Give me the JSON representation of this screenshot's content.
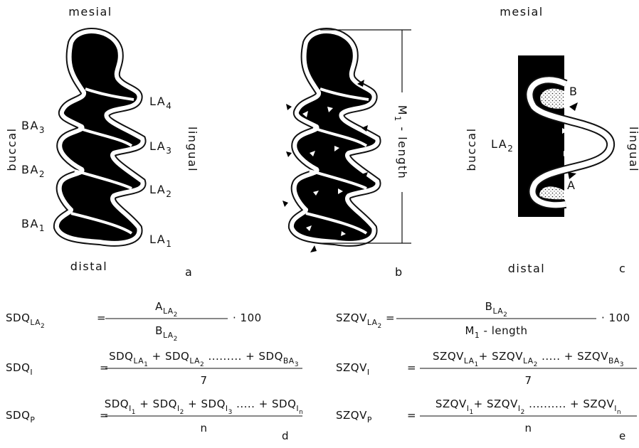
{
  "panel_a": {
    "top": "mesial",
    "bottom": "distal",
    "left": "buccal",
    "right": "lingual",
    "letter": "a",
    "labels": [
      {
        "base": "LA",
        "sub": "4"
      },
      {
        "base": "BA",
        "sub": "3"
      },
      {
        "base": "LA",
        "sub": "3"
      },
      {
        "base": "BA",
        "sub": "2"
      },
      {
        "base": "LA",
        "sub": "2"
      },
      {
        "base": "BA",
        "sub": "1"
      },
      {
        "base": "LA",
        "sub": "1"
      }
    ]
  },
  "panel_b": {
    "length": [
      {
        "t": "M"
      },
      {
        "s": "1"
      },
      {
        "t": " - length"
      }
    ],
    "letter": "b"
  },
  "panel_c": {
    "top": "mesial",
    "bottom": "distal",
    "left": "buccal",
    "right": "lingual",
    "letter": "c",
    "labels": [
      {
        "base": "LA",
        "sub": "2"
      },
      {
        "base": "B"
      },
      {
        "base": "A"
      }
    ]
  },
  "panel_d": {
    "letter": "d",
    "formulas": [
      {
        "lhs": [
          {
            "t": "SDQ"
          },
          {
            "s": "LA"
          },
          {
            "ss": "2"
          }
        ],
        "eq": "=",
        "num": [
          {
            "t": "A"
          },
          {
            "s": "LA"
          },
          {
            "ss": "2"
          }
        ],
        "den": [
          {
            "t": "B"
          },
          {
            "s": "LA"
          },
          {
            "ss": "2"
          }
        ],
        "factor": "· 100"
      },
      {
        "lhs": [
          {
            "t": "SDQ"
          },
          {
            "s": "I"
          }
        ],
        "eq": "=",
        "num": [
          {
            "t": "SDQ"
          },
          {
            "s": "LA"
          },
          {
            "ss": "1"
          },
          {
            "t": " + SDQ"
          },
          {
            "s": "LA"
          },
          {
            "ss": "2"
          },
          {
            "t": " ......... + SDQ"
          },
          {
            "s": "BA"
          },
          {
            "ss": "3"
          }
        ],
        "den": [
          {
            "t": "7"
          }
        ]
      },
      {
        "lhs": [
          {
            "t": "SDQ"
          },
          {
            "s": "P"
          }
        ],
        "eq": "=",
        "num": [
          {
            "t": "SDQ"
          },
          {
            "s": "I"
          },
          {
            "ss": "1"
          },
          {
            "t": " + SDQ"
          },
          {
            "s": "I"
          },
          {
            "ss": "2"
          },
          {
            "t": " + SDQ"
          },
          {
            "s": "I"
          },
          {
            "ss": "3"
          },
          {
            "t": " ..... + SDQ"
          },
          {
            "s": "I"
          },
          {
            "ss": "n"
          }
        ],
        "den": [
          {
            "t": "n"
          }
        ]
      }
    ]
  },
  "panel_e": {
    "letter": "e",
    "formulas": [
      {
        "lhs": [
          {
            "t": "SZQV"
          },
          {
            "s": "LA"
          },
          {
            "ss": "2"
          }
        ],
        "eq": "=",
        "num": [
          {
            "t": "B"
          },
          {
            "s": "LA"
          },
          {
            "ss": "2"
          }
        ],
        "den": [
          {
            "t": "M"
          },
          {
            "s": "1"
          },
          {
            "t": " - length"
          }
        ],
        "factor": "· 100"
      },
      {
        "lhs": [
          {
            "t": "SZQV"
          },
          {
            "s": "I"
          }
        ],
        "eq": "=",
        "num": [
          {
            "t": "SZQV"
          },
          {
            "s": "LA"
          },
          {
            "ss": "1"
          },
          {
            "t": "+ SZQV"
          },
          {
            "s": "LA"
          },
          {
            "ss": "2"
          },
          {
            "t": " ..... + SZQV"
          },
          {
            "s": "BA"
          },
          {
            "ss": "3"
          }
        ],
        "den": [
          {
            "t": "7"
          }
        ]
      },
      {
        "lhs": [
          {
            "t": "SZQV"
          },
          {
            "s": "P"
          }
        ],
        "eq": "=",
        "num": [
          {
            "t": "SZQV"
          },
          {
            "s": "I"
          },
          {
            "ss": "1"
          },
          {
            "t": "+ SZQV"
          },
          {
            "s": "I"
          },
          {
            "ss": "2"
          },
          {
            "t": " .......... + SZQV"
          },
          {
            "s": "I"
          },
          {
            "ss": "n"
          }
        ],
        "den": [
          {
            "t": "n"
          }
        ]
      }
    ]
  }
}
